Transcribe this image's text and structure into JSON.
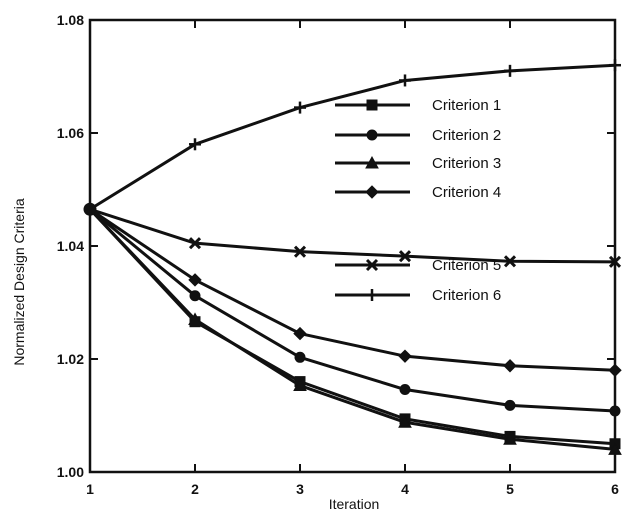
{
  "chart_data": {
    "type": "line",
    "title": "",
    "xlabel": "Iteration",
    "ylabel": "Normalized Design Criteria",
    "x": [
      1,
      2,
      3,
      4,
      5,
      6
    ],
    "xlim": [
      1,
      6
    ],
    "ylim": [
      1.0,
      1.08
    ],
    "xticks": [
      "1",
      "2",
      "3",
      "4",
      "5",
      "6"
    ],
    "yticks": [
      "1.00",
      "1.02",
      "1.04",
      "1.06",
      "1.08"
    ],
    "grid": false,
    "legend_position": "center-right",
    "series": [
      {
        "name": "Criterion 1",
        "marker": "square",
        "values": [
          1.0465,
          1.0266,
          1.016,
          1.0094,
          1.0063,
          1.005
        ]
      },
      {
        "name": "Criterion 2",
        "marker": "circle",
        "values": [
          1.0465,
          1.0312,
          1.0203,
          1.0146,
          1.0118,
          1.0108
        ]
      },
      {
        "name": "Criterion 3",
        "marker": "triangle",
        "values": [
          1.0465,
          1.027,
          1.0153,
          1.0088,
          1.0058,
          1.004
        ]
      },
      {
        "name": "Criterion 4",
        "marker": "diamond",
        "values": [
          1.0465,
          1.034,
          1.0245,
          1.0205,
          1.0188,
          1.018
        ]
      },
      {
        "name": "Criterion 5",
        "marker": "x",
        "values": [
          1.0465,
          1.0405,
          1.039,
          1.0382,
          1.0373,
          1.0372
        ]
      },
      {
        "name": "Criterion 6",
        "marker": "plus",
        "values": [
          1.0465,
          1.058,
          1.0645,
          1.0693,
          1.071,
          1.072
        ]
      }
    ]
  }
}
